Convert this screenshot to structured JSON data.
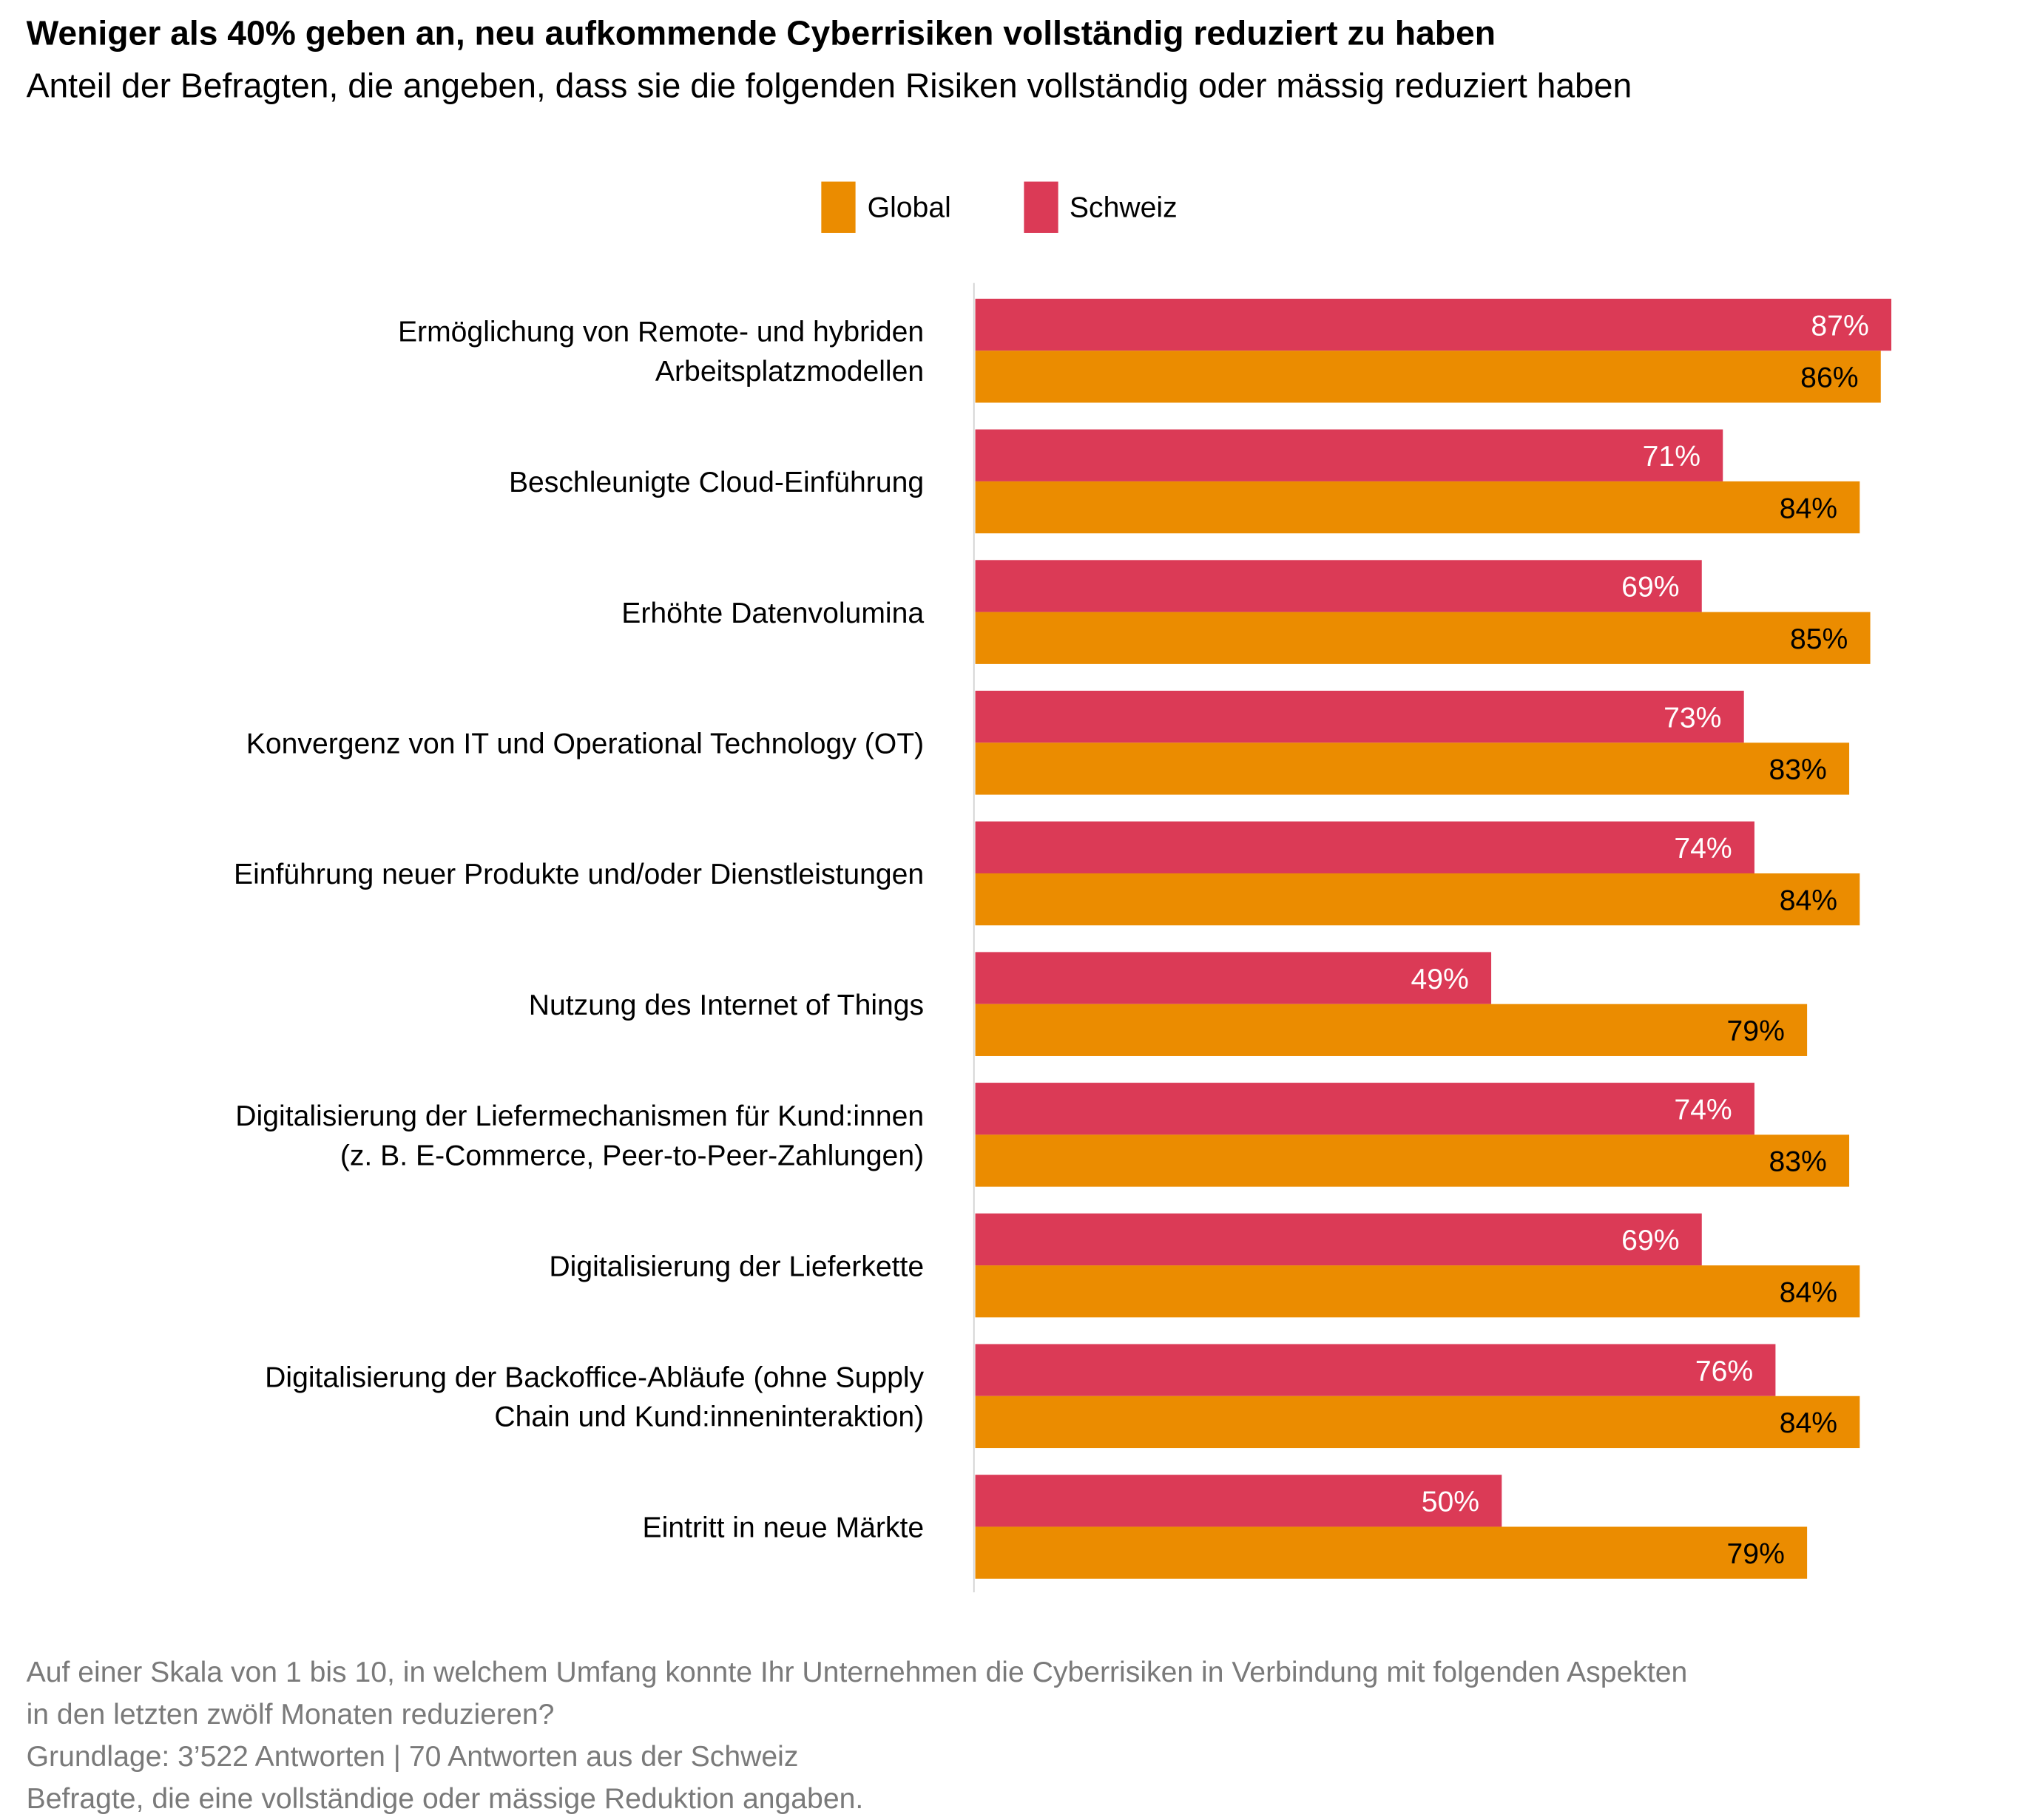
{
  "chart_data": {
    "type": "bar",
    "orientation": "horizontal",
    "title": "Weniger als 40% geben an, neu aufkommende Cyberrisiken vollständig reduziert zu haben",
    "subtitle": "Anteil der Befragten, die angeben, dass sie die folgenden Risiken vollständig oder mässig reduziert haben",
    "categories": [
      [
        "Ermöglichung von Remote- und hybriden",
        "Arbeitsplatzmodellen"
      ],
      [
        "Beschleunigte Cloud-Einführung"
      ],
      [
        "Erhöhte Datenvolumina"
      ],
      [
        "Konvergenz von IT und Operational Technology (OT)"
      ],
      [
        "Einführung neuer Produkte und/oder Dienstleistungen"
      ],
      [
        "Nutzung des Internet of Things"
      ],
      [
        "Digitalisierung der Liefermechanismen für Kund:innen",
        "(z. B. E-Commerce, Peer-to-Peer-Zahlungen)"
      ],
      [
        "Digitalisierung der Lieferkette"
      ],
      [
        "Digitalisierung der Backoffice-Abläufe (ohne Supply",
        "Chain und Kund:inneninteraktion)"
      ],
      [
        "Eintritt in neue Märkte"
      ]
    ],
    "series": [
      {
        "name": "Schweiz",
        "color": "#DB3A56",
        "label_color": "#FFFFFF",
        "values": [
          87,
          71,
          69,
          73,
          74,
          49,
          74,
          69,
          76,
          50
        ]
      },
      {
        "name": "Global",
        "color": "#EB8C00",
        "label_color": "#000000",
        "values": [
          86,
          84,
          85,
          83,
          84,
          79,
          83,
          84,
          84,
          79
        ]
      }
    ],
    "legend_order": [
      "Global",
      "Schweiz"
    ],
    "legend_placement": "top-center",
    "value_suffix": "%",
    "xlim": [
      0,
      100
    ],
    "grid": false
  },
  "footnote": [
    "Auf einer Skala von 1 bis 10, in welchem Umfang konnte Ihr Unternehmen die Cyberrisiken in Verbindung mit folgenden Aspekten",
    "in den letzten zwölf Monaten reduzieren?",
    "Grundlage: 3’522 Antworten | 70 Antworten aus der Schweiz",
    "Befragte, die eine vollständige oder mässige Reduktion angaben."
  ]
}
